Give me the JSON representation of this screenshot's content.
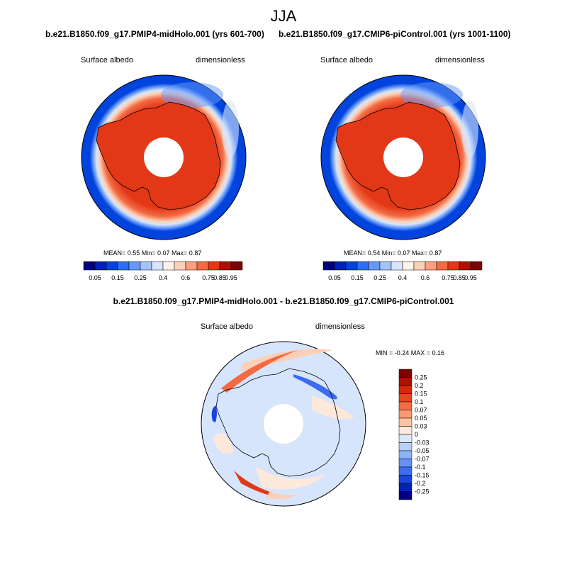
{
  "figure": {
    "season": "JJA"
  },
  "panels": [
    {
      "title": "b.e21.B1850.f09_g17.PMIP4-midHolo.001 (yrs 601-700)",
      "variable": "Surface albedo",
      "units": "dimensionless",
      "stats": {
        "mean": "0.55",
        "min": "0.07",
        "max": "0.87"
      },
      "stats_text": "MEAN=  0.55  Min=  0.07  Max=  0.87"
    },
    {
      "title": "b.e21.B1850.f09_g17.CMIP6-piControl.001 (yrs 1001-1100)",
      "variable": "Surface albedo",
      "units": "dimensionless",
      "stats": {
        "mean": "0.54",
        "min": "0.07",
        "max": "0.87"
      },
      "stats_text": "MEAN=  0.54  Min=  0.07  Max=  0.87"
    }
  ],
  "diff_panel": {
    "title": "b.e21.B1850.f09_g17.PMIP4-midHolo.001 - b.e21.B1850.f09_g17.CMIP6-piControl.001",
    "variable": "Surface albedo",
    "units": "dimensionless",
    "stats_text": "MIN =  -0.24 MAX =   0.16"
  },
  "colorbars": {
    "albedo": {
      "orientation": "horizontal",
      "colors": [
        "#00007e",
        "#0022b4",
        "#0044dd",
        "#2e6df5",
        "#6698f9",
        "#a3c3fb",
        "#d7e5fc",
        "#fff2ea",
        "#fcd0b6",
        "#fba07a",
        "#f46a43",
        "#e23817",
        "#b10f02",
        "#7f0000"
      ],
      "tick_labels": [
        "0.05",
        "0.15",
        "0.25",
        "0.4",
        "0.6",
        "0.75",
        "0.85",
        "0.95"
      ]
    },
    "diff": {
      "orientation": "vertical",
      "colors_top_to_bottom": [
        "#7f0000",
        "#b10f02",
        "#d42808",
        "#ea451d",
        "#f56d43",
        "#fb9a70",
        "#fcc3a3",
        "#fde8da",
        "#d9e8fb",
        "#b7d0fa",
        "#8fb3f8",
        "#6691f5",
        "#3d6cee",
        "#1944dd",
        "#0422b2",
        "#00007e"
      ],
      "tick_labels": [
        "0.25",
        "0.2",
        "0.15",
        "0.1",
        "0.07",
        "0.05",
        "0.03",
        "0",
        "-0.03",
        "-0.05",
        "-0.07",
        "-0.1",
        "-0.15",
        "-0.2",
        "-0.25"
      ]
    }
  },
  "chart_data": [
    {
      "type": "map",
      "projection": "south polar stereographic",
      "title": "b.e21.B1850.f09_g17.PMIP4-midHolo.001 (yrs 601-700)",
      "variable": "Surface albedo",
      "units": "dimensionless",
      "mean": 0.55,
      "min": 0.07,
      "max": 0.87
    },
    {
      "type": "map",
      "projection": "south polar stereographic",
      "title": "b.e21.B1850.f09_g17.CMIP6-piControl.001 (yrs 1001-1100)",
      "variable": "Surface albedo",
      "units": "dimensionless",
      "mean": 0.54,
      "min": 0.07,
      "max": 0.87
    },
    {
      "type": "map",
      "projection": "south polar stereographic",
      "title": "b.e21.B1850.f09_g17.PMIP4-midHolo.001 - b.e21.B1850.f09_g17.CMIP6-piControl.001",
      "variable": "Surface albedo",
      "units": "dimensionless",
      "min": -0.24,
      "max": 0.16
    }
  ]
}
